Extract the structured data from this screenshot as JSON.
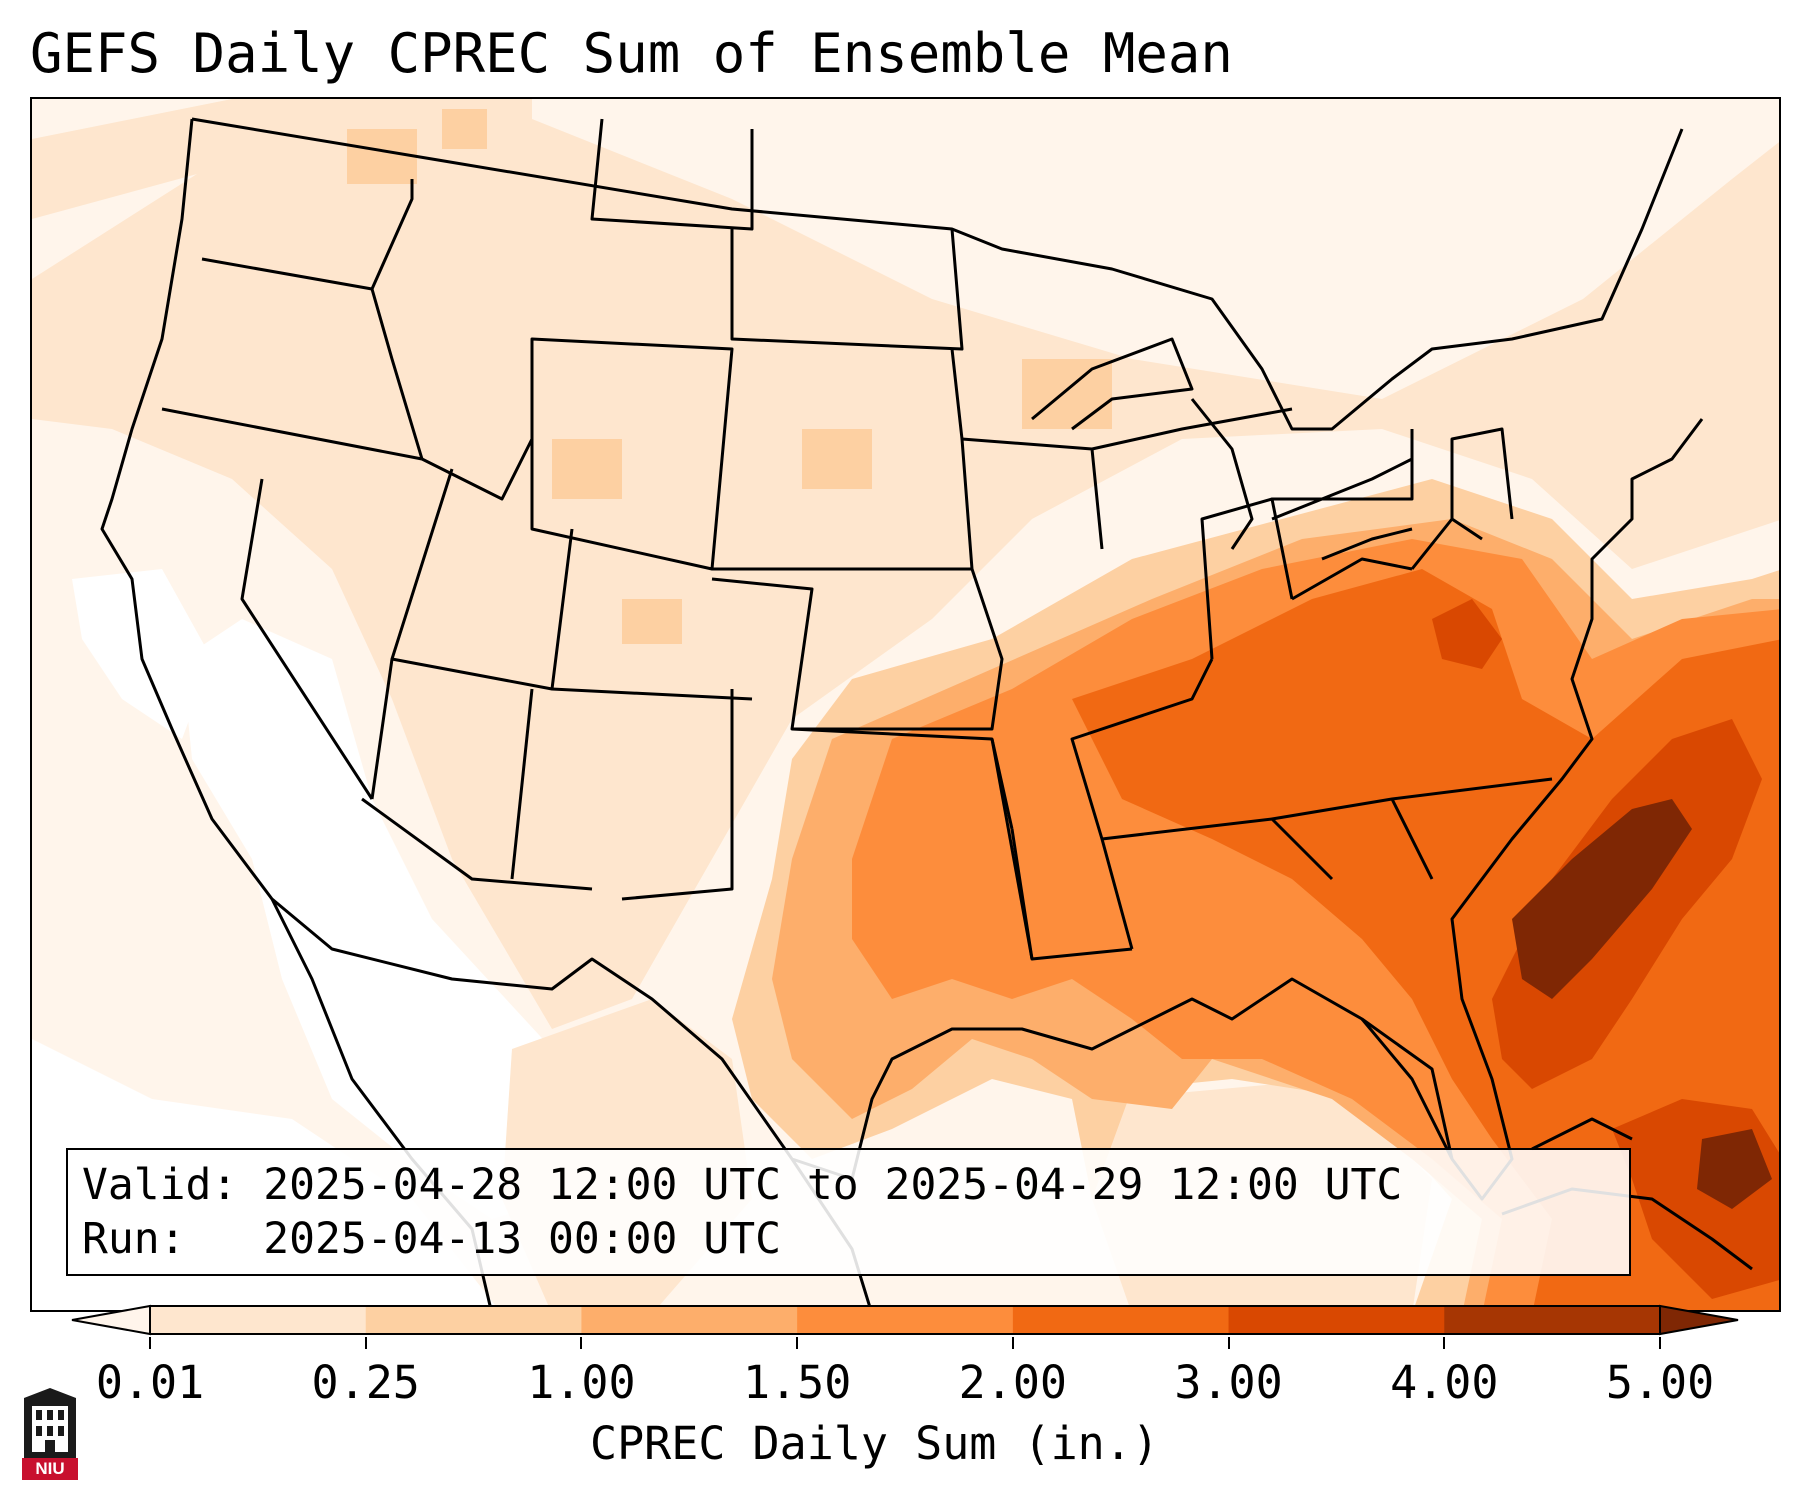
{
  "title": "GEFS Daily CPREC Sum of Ensemble Mean",
  "info": {
    "valid_label": "Valid:",
    "valid_text": "2025-04-28 12:00 UTC to 2025-04-29 12:00 UTC",
    "run_label": "Run:",
    "run_text": "2025-04-13 00:00 UTC"
  },
  "colorbar": {
    "label": "CPREC Daily Sum (in.)",
    "ticks": [
      "0.01",
      "0.25",
      "1.00",
      "1.50",
      "2.00",
      "3.00",
      "4.00",
      "5.00"
    ],
    "levels": [
      0.01,
      0.25,
      1.0,
      1.5,
      2.0,
      3.0,
      4.0,
      5.0
    ],
    "colors": [
      "#fff5eb",
      "#fee6ce",
      "#fdd0a2",
      "#fdae6b",
      "#fd8d3c",
      "#f16913",
      "#d94801",
      "#a63603",
      "#7f2704"
    ],
    "extend": "both"
  },
  "logo": {
    "text": "NIU",
    "icon": "niu-tower-logo"
  },
  "palette": {
    "frame": "#000000",
    "borders": "#000000",
    "max": "#7f2704"
  }
}
